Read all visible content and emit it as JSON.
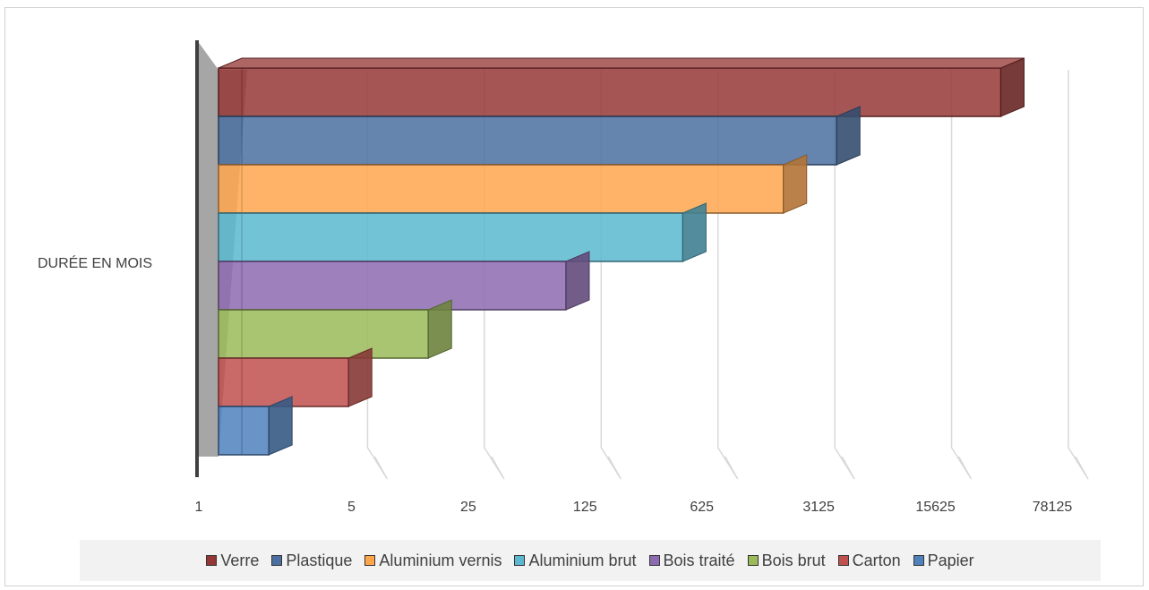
{
  "chart_data": {
    "type": "bar",
    "orientation": "horizontal",
    "three_d": true,
    "category": "DURÉE EN MOIS",
    "x_scale": "log",
    "x_tick_labels": [
      "1",
      "5",
      "25",
      "125",
      "625",
      "3125",
      "15625",
      "78125"
    ],
    "xlim": [
      1,
      78125
    ],
    "grid": true,
    "legend_position": "bottom",
    "series": [
      {
        "name": "Verre",
        "value": 48000,
        "color": "#953735"
      },
      {
        "name": "Plastique",
        "value": 5000,
        "color": "#4a6fa0"
      },
      {
        "name": "Aluminium vernis",
        "value": 2400,
        "color": "#ffa64d"
      },
      {
        "name": "Aluminium brut",
        "value": 600,
        "color": "#5bb8d0"
      },
      {
        "name": "Bois traité",
        "value": 120,
        "color": "#8d6bb0"
      },
      {
        "name": "Bois brut",
        "value": 18,
        "color": "#9bbb59"
      },
      {
        "name": "Carton",
        "value": 6,
        "color": "#c0504d"
      },
      {
        "name": "Papier",
        "value": 2,
        "color": "#4f81bd"
      }
    ]
  }
}
